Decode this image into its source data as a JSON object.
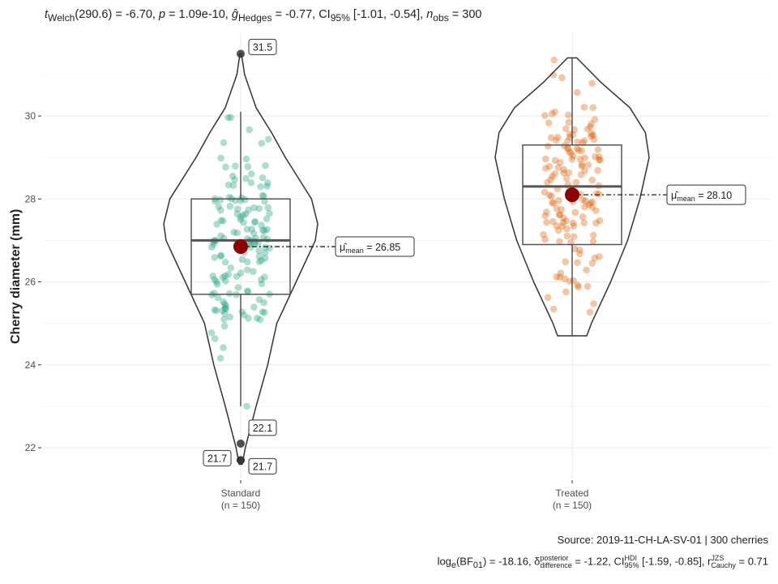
{
  "chart_data": {
    "type": "violin-box-scatter",
    "title": "t_Welch(290.6) = -6.70, p = 1.09e-10, g_Hedges = -0.77, CI95% [-1.01, -0.54], n_obs = 300",
    "title_parts": {
      "t": "t",
      "t_sub": "Welch",
      "t_val": "(290.6) = -6.70, ",
      "p": "p",
      "p_val": " = 1.09e-10, ",
      "g": "g",
      "g_sub": "Hedges",
      "g_val": " = -0.77, CI",
      "ci_sub": "95%",
      "ci_val": " [-1.01, -0.54], ",
      "n": "n",
      "n_sub": "obs",
      "n_val": " = 300"
    },
    "ylabel": "Cherry diameter (mm)",
    "ylim": [
      21.2,
      31.9
    ],
    "yticks": [
      22,
      24,
      26,
      28,
      30
    ],
    "grid": true,
    "caption_source": "Source: 2019-11-CH-LA-SV-01 | 300 cherries",
    "caption_bayes": {
      "a": "log",
      "a_sub": "e",
      "b": "(BF",
      "b_sub": "01",
      "c": ") = -18.16, δ",
      "c_sup": "posterior",
      "c_sub": "difference",
      "d": " = -1.22, CI",
      "d_sup": "HDI",
      "d_sub": "95%",
      "e": " [-1.59, -0.85], r",
      "e_sup": "JZS",
      "e_sub": "Cauchy",
      "f": " = 0.71"
    },
    "groups": [
      {
        "name": "Standard",
        "n_label": "(n = 150)",
        "n": 150,
        "color": "#1B9E77",
        "box": {
          "q1": 25.7,
          "median": 27.0,
          "q3": 28.0,
          "whisker_low": 23.0,
          "whisker_high": 30.1
        },
        "mean": 26.85,
        "mean_label": "μ̂mean = 26.85",
        "mean_text": "= 26.85",
        "outliers": [
          {
            "value": 31.5,
            "label": "31.5"
          },
          {
            "value": 22.1,
            "label": "22.1"
          },
          {
            "value": 21.7,
            "label": "21.7"
          },
          {
            "value": 21.7,
            "label": "21.7"
          }
        ],
        "density": [
          [
            21.6,
            0.02
          ],
          [
            22.0,
            0.06
          ],
          [
            23.0,
            0.2
          ],
          [
            24.0,
            0.35
          ],
          [
            25.0,
            0.47
          ],
          [
            26.0,
            0.72
          ],
          [
            27.0,
            0.97
          ],
          [
            27.4,
            1.0
          ],
          [
            28.0,
            0.92
          ],
          [
            29.0,
            0.58
          ],
          [
            29.6,
            0.4
          ],
          [
            30.2,
            0.2
          ],
          [
            31.0,
            0.05
          ],
          [
            31.5,
            0.01
          ]
        ]
      },
      {
        "name": "Treated",
        "n_label": "(n = 150)",
        "n": 150,
        "color": "#D95F02",
        "box": {
          "q1": 26.9,
          "median": 28.3,
          "q3": 29.3,
          "whisker_low": 24.7,
          "whisker_high": 31.4
        },
        "mean": 28.1,
        "mean_label": "μ̂mean = 28.10",
        "mean_text": "= 28.10",
        "outliers": [],
        "density": [
          [
            24.7,
            0.19
          ],
          [
            25.0,
            0.25
          ],
          [
            26.0,
            0.5
          ],
          [
            27.0,
            0.72
          ],
          [
            28.0,
            0.88
          ],
          [
            29.0,
            1.0
          ],
          [
            29.6,
            0.95
          ],
          [
            30.2,
            0.75
          ],
          [
            30.8,
            0.38
          ],
          [
            31.4,
            0.06
          ]
        ]
      }
    ]
  }
}
